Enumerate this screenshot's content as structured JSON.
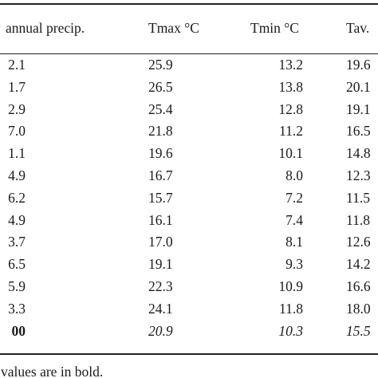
{
  "table": {
    "headers": {
      "precip": "annual precip.",
      "tmax": "Tmax °C",
      "tmin": "Tmin °C",
      "tav": "Tav."
    },
    "rows": [
      {
        "precip": "2.1",
        "tmax": "25.9",
        "tmin": "13.2",
        "tav": "19.6"
      },
      {
        "precip": "1.7",
        "tmax": "26.5",
        "tmin": "13.8",
        "tav": "20.1"
      },
      {
        "precip": "2.9",
        "tmax": "25.4",
        "tmin": "12.8",
        "tav": "19.1"
      },
      {
        "precip": "7.0",
        "tmax": "21.8",
        "tmin": "11.2",
        "tav": "16.5"
      },
      {
        "precip": "1.1",
        "tmax": "19.6",
        "tmin": "10.1",
        "tav": "14.8"
      },
      {
        "precip": "4.9",
        "tmax": "16.7",
        "tmin": "8.0",
        "tav": "12.3"
      },
      {
        "precip": "6.2",
        "tmax": "15.7",
        "tmin": "7.2",
        "tav": "11.5"
      },
      {
        "precip": "4.9",
        "tmax": "16.1",
        "tmin": "7.4",
        "tav": "11.8"
      },
      {
        "precip": "3.7",
        "tmax": "17.0",
        "tmin": "8.1",
        "tav": "12.6"
      },
      {
        "precip": "6.5",
        "tmax": "19.1",
        "tmin": "9.3",
        "tav": "14.2"
      },
      {
        "precip": "5.9",
        "tmax": "22.3",
        "tmin": "10.9",
        "tav": "16.6"
      },
      {
        "precip": "3.3",
        "tmax": "24.1",
        "tmin": "11.8",
        "tav": "18.0"
      }
    ],
    "summary": {
      "precip": "00",
      "tmax": "20.9",
      "tmin": "10.3",
      "tav": "15.5"
    }
  },
  "footnote": "values are in bold."
}
